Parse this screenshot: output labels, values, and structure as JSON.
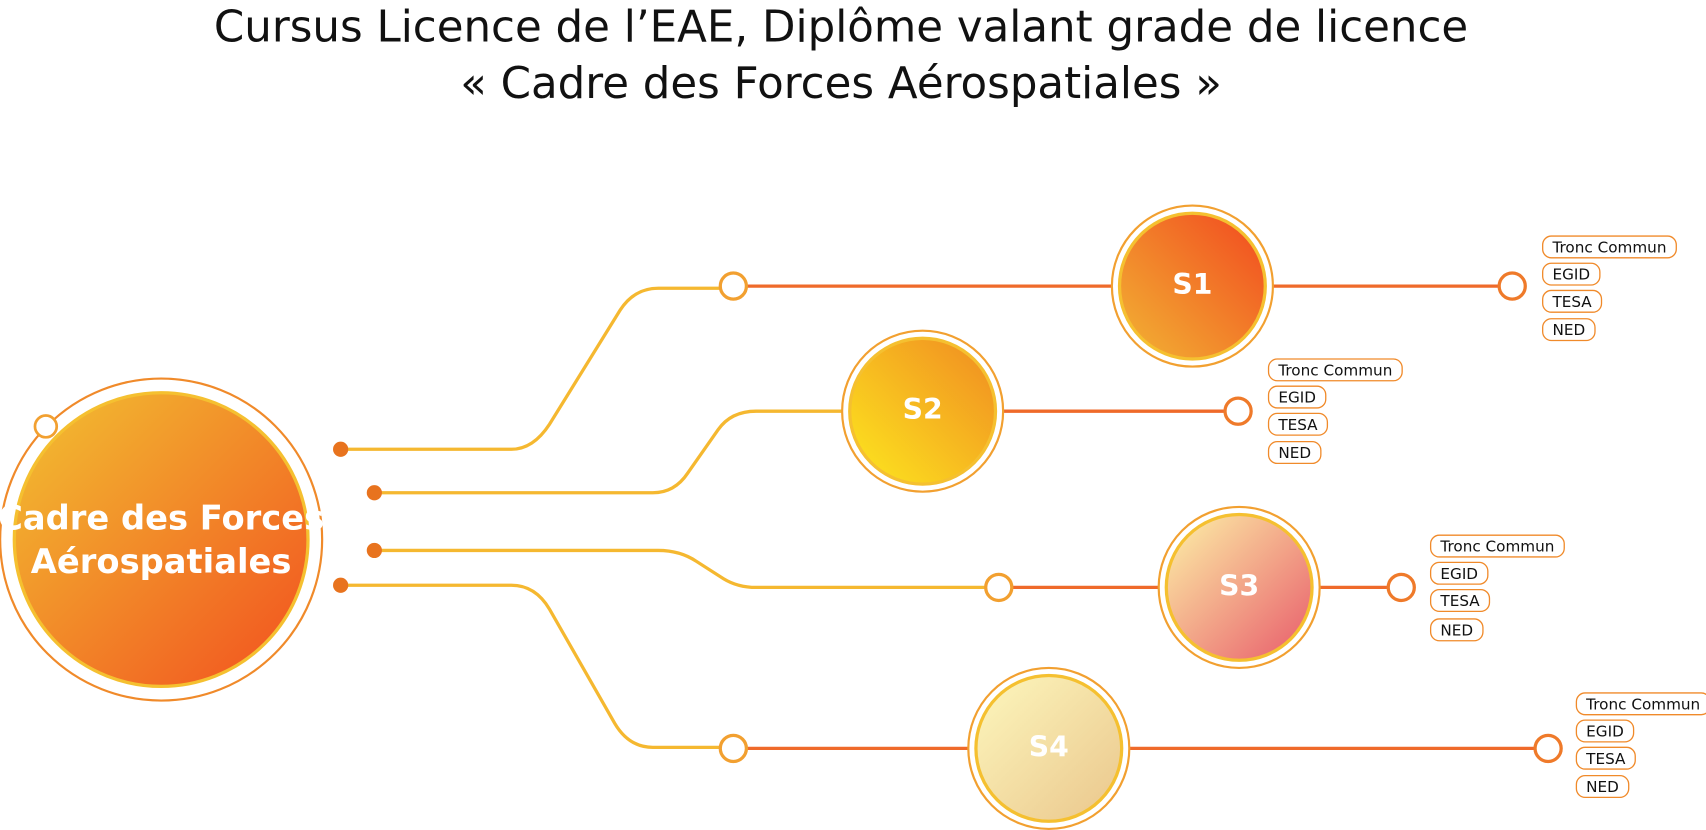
{
  "title": [
    "Cursus Licence de l’EAE, Diplôme valant grade de licence",
    "« Cadre des Forces Aérospatiales »"
  ],
  "root": {
    "label": [
      "Cadre des Forces",
      "Aérospatiales"
    ]
  },
  "semesters": [
    {
      "label": "S1",
      "tags": [
        "Tronc Commun",
        "EGID",
        "TESA",
        "NED"
      ]
    },
    {
      "label": "S2",
      "tags": [
        "Tronc Commun",
        "EGID",
        "TESA",
        "NED"
      ]
    },
    {
      "label": "S3",
      "tags": [
        "Tronc Commun",
        "EGID",
        "TESA",
        "NED"
      ]
    },
    {
      "label": "S4",
      "tags": [
        "Tronc Commun",
        "EGID",
        "TESA",
        "NED"
      ]
    }
  ]
}
